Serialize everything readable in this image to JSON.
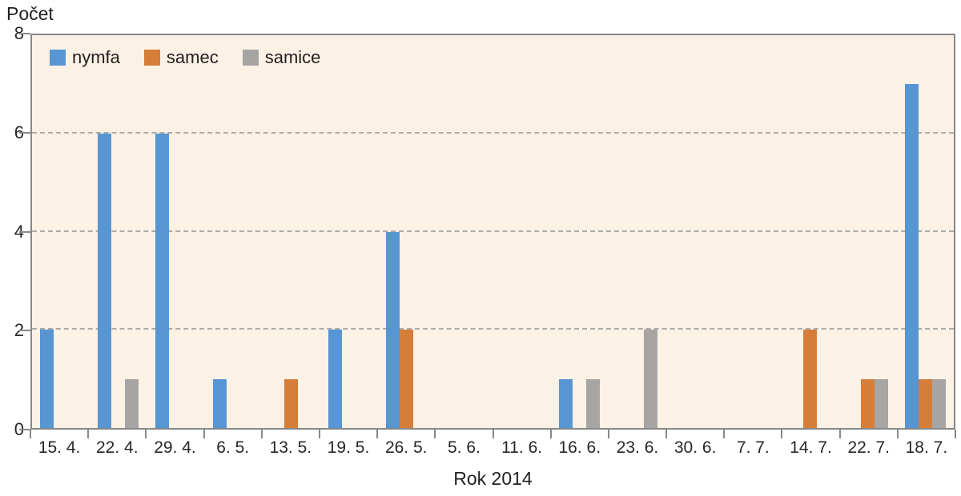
{
  "chart_data": {
    "type": "bar",
    "title": "",
    "ylabel": "Počet",
    "xlabel": "Rok 2014",
    "ylim": [
      0,
      8
    ],
    "yticks": [
      0,
      2,
      4,
      6,
      8
    ],
    "gridlines": [
      2,
      4,
      6
    ],
    "grid": "horizontal dashed",
    "legend_position": "top-left inside plot",
    "plot_background": "#fbf1e5",
    "frame_color": "#87888b",
    "gridline_color": "#ababab",
    "text_color": "#262626",
    "categories": [
      "15. 4.",
      "22. 4.",
      "29. 4.",
      "6. 5.",
      "13. 5.",
      "19. 5.",
      "26. 5.",
      "5. 6.",
      "11. 6.",
      "16. 6.",
      "23. 6.",
      "30. 6.",
      "7. 7.",
      "14. 7.",
      "22. 7.",
      "18. 7."
    ],
    "series": [
      {
        "name": "nymfa",
        "color": "#5795d3",
        "values": [
          2,
          6,
          6,
          1,
          0,
          2,
          4,
          0,
          0,
          1,
          0,
          0,
          0,
          0,
          0,
          7
        ]
      },
      {
        "name": "samec",
        "color": "#d57e3a",
        "values": [
          0,
          0,
          0,
          0,
          1,
          0,
          2,
          0,
          0,
          0,
          0,
          0,
          0,
          2,
          1,
          1
        ]
      },
      {
        "name": "samice",
        "color": "#a7a5a3",
        "values": [
          0,
          1,
          0,
          0,
          0,
          0,
          0,
          0,
          0,
          1,
          2,
          0,
          0,
          0,
          1,
          1
        ]
      }
    ]
  }
}
